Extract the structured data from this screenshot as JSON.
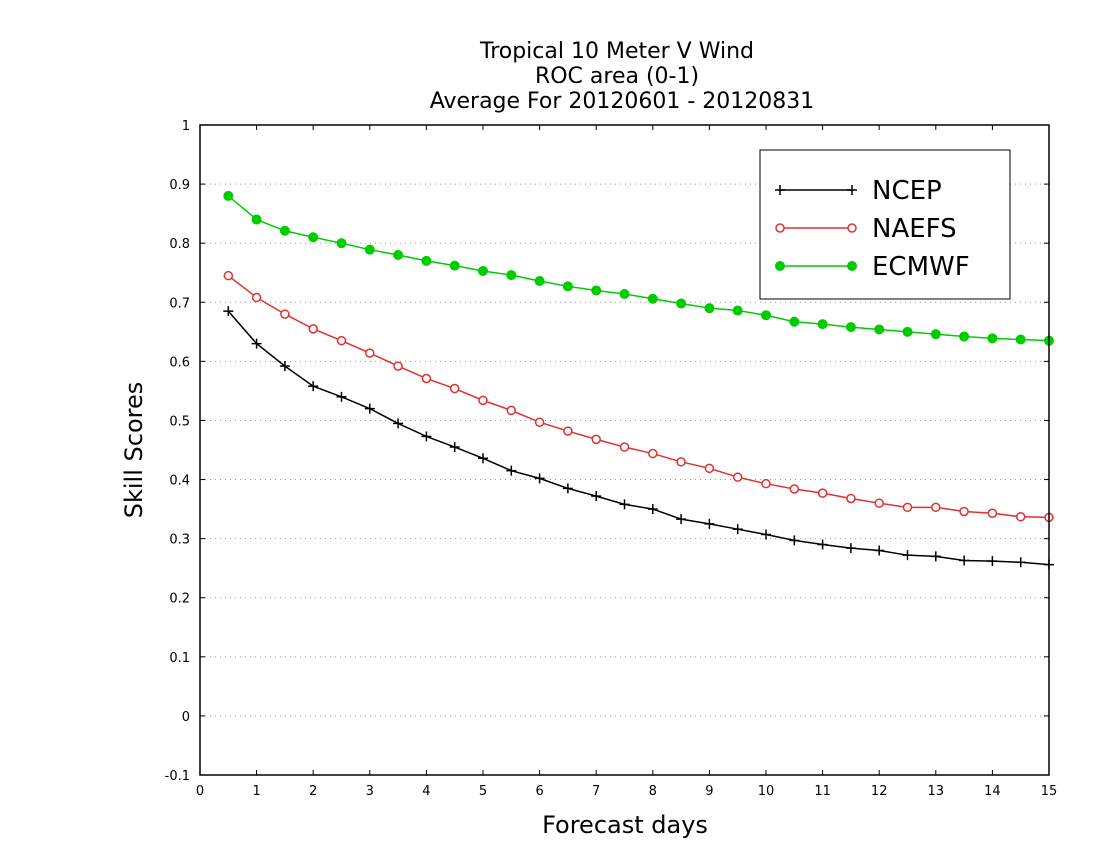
{
  "chart_data": {
    "type": "line",
    "title_lines": [
      "Tropical 10 Meter V Wind",
      "ROC area (0-1)",
      "Average For 20120601 - 20120831"
    ],
    "xlabel": "Forecast days",
    "ylabel": "Skill Scores",
    "xlim": [
      0,
      15
    ],
    "ylim": [
      -0.1,
      1
    ],
    "x_ticks": [
      0,
      1,
      2,
      3,
      4,
      5,
      6,
      7,
      8,
      9,
      10,
      11,
      12,
      13,
      14,
      15
    ],
    "x_tick_labels": [
      "0",
      "1",
      "2",
      "3",
      "4",
      "5",
      "6",
      "7",
      "8",
      "9",
      "10",
      "11",
      "12",
      "13",
      "14",
      "15"
    ],
    "y_ticks": [
      -0.1,
      0,
      0.1,
      0.2,
      0.3,
      0.4,
      0.5,
      0.6,
      0.7,
      0.8,
      0.9,
      1
    ],
    "y_tick_labels": [
      "-0.1",
      "0",
      "0.1",
      "0.2",
      "0.3",
      "0.4",
      "0.5",
      "0.6",
      "0.7",
      "0.8",
      "0.9",
      "1"
    ],
    "grid": true,
    "legend_position": "top-right",
    "x": [
      0.5,
      1,
      1.5,
      2,
      2.5,
      3,
      3.5,
      4,
      4.5,
      5,
      5.5,
      6,
      6.5,
      7,
      7.5,
      8,
      8.5,
      9,
      9.5,
      10,
      10.5,
      11,
      11.5,
      12,
      12.5,
      13,
      13.5,
      14,
      14.5,
      15
    ],
    "series": [
      {
        "name": "NCEP",
        "marker": "plus",
        "color": "#000000",
        "values": [
          0.685,
          0.63,
          0.592,
          0.558,
          0.54,
          0.52,
          0.495,
          0.473,
          0.455,
          0.436,
          0.415,
          0.402,
          0.385,
          0.372,
          0.358,
          0.35,
          0.333,
          0.325,
          0.316,
          0.307,
          0.297,
          0.29,
          0.284,
          0.28,
          0.272,
          0.27,
          0.263,
          0.262,
          0.26,
          0.256
        ]
      },
      {
        "name": "NAEFS",
        "marker": "open-circle",
        "color": "#e03030",
        "values": [
          0.745,
          0.708,
          0.68,
          0.655,
          0.635,
          0.614,
          0.592,
          0.571,
          0.554,
          0.534,
          0.517,
          0.497,
          0.482,
          0.468,
          0.455,
          0.444,
          0.43,
          0.419,
          0.404,
          0.393,
          0.384,
          0.377,
          0.368,
          0.36,
          0.353,
          0.353,
          0.346,
          0.343,
          0.337,
          0.336
        ]
      },
      {
        "name": "ECMWF",
        "marker": "filled-circle",
        "color": "#00cc00",
        "values": [
          0.88,
          0.84,
          0.821,
          0.81,
          0.8,
          0.789,
          0.78,
          0.77,
          0.762,
          0.753,
          0.746,
          0.736,
          0.727,
          0.72,
          0.714,
          0.706,
          0.698,
          0.69,
          0.686,
          0.678,
          0.667,
          0.663,
          0.658,
          0.654,
          0.65,
          0.646,
          0.642,
          0.639,
          0.637,
          0.635
        ]
      }
    ]
  }
}
